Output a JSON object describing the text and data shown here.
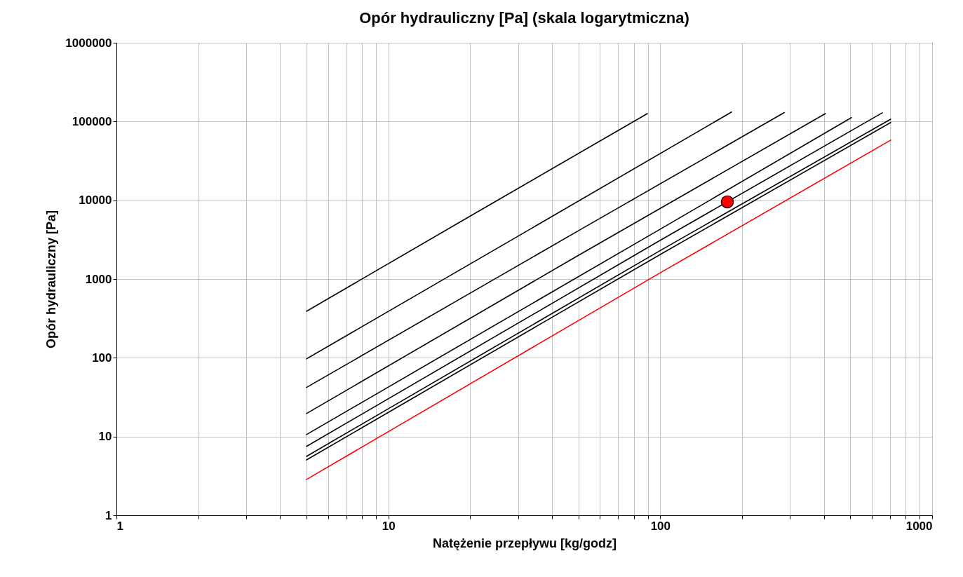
{
  "chart_data": {
    "type": "line",
    "title": "Opór hydrauliczny [Pa] (skala logarytmiczna)",
    "xlabel": "Natężenie przepływu [kg/godz]",
    "ylabel": "Opór hydrauliczny [Pa]",
    "log": "xy",
    "grid": true,
    "marker": "none",
    "line_style": "solid",
    "xlim": [
      1,
      1000
    ],
    "ylim": [
      1,
      1000000
    ],
    "xticks": [
      1,
      {
        "value": 2,
        "label": null
      },
      {
        "value": 3,
        "label": null
      },
      {
        "value": 4,
        "label": null
      },
      {
        "value": 5,
        "label": null
      },
      {
        "value": 6,
        "label": null
      },
      {
        "value": 7,
        "label": null
      },
      {
        "value": 8,
        "label": null
      },
      {
        "value": 9,
        "label": null
      },
      10,
      {
        "value": 20,
        "label": null
      },
      {
        "value": 30,
        "label": null
      },
      {
        "value": 40,
        "label": null
      },
      {
        "value": 50,
        "label": null
      },
      {
        "value": 60,
        "label": null
      },
      {
        "value": 70,
        "label": null
      },
      {
        "value": 80,
        "label": null
      },
      {
        "value": 90,
        "label": null
      },
      100,
      {
        "value": 200,
        "label": null
      },
      {
        "value": 300,
        "label": null
      },
      {
        "value": 400,
        "label": null
      },
      {
        "value": 500,
        "label": null
      },
      {
        "value": 600,
        "label": null
      },
      {
        "value": 700,
        "label": null
      },
      {
        "value": 800,
        "label": null
      },
      {
        "value": 900,
        "label": null
      },
      1000
    ],
    "yticks": [
      1,
      10,
      100,
      1000,
      10000,
      100000,
      1000000
    ],
    "series": [
      {
        "color": "#000000",
        "x": [
          5,
          20,
          89.7
        ],
        "values": [
          390,
          6300,
          126000
        ]
      },
      {
        "color": "#000000",
        "x": [
          5,
          30,
          183
        ],
        "values": [
          97,
          3500,
          132000
        ]
      },
      {
        "color": "#000000",
        "x": [
          5,
          50,
          286
        ],
        "values": [
          42,
          4100,
          130000
        ]
      },
      {
        "color": "#000000",
        "x": [
          5,
          50,
          405
        ],
        "values": [
          19.6,
          2000,
          126000
        ]
      },
      {
        "color": "#000000",
        "x": [
          5,
          100,
          505
        ],
        "values": [
          10.6,
          4300,
          112000
        ]
      },
      {
        "color": "#000000",
        "x": [
          5,
          100,
          656
        ],
        "values": [
          7.5,
          3100,
          129000
        ]
      },
      {
        "color": "#000000",
        "x": [
          5,
          100,
          704
        ],
        "values": [
          5.6,
          2300,
          107000
        ]
      },
      {
        "color": "#000000",
        "x": [
          5,
          100,
          704
        ],
        "values": [
          5.05,
          2050,
          97000
        ]
      },
      {
        "color": "#ff0000",
        "x": [
          5,
          100,
          704
        ],
        "values": [
          2.85,
          1200,
          58000
        ]
      },
      {
        "type": "scatter",
        "marker": "circle",
        "color": "#ff0000",
        "x": [
          176.5
        ],
        "values": [
          9550
        ]
      }
    ]
  }
}
